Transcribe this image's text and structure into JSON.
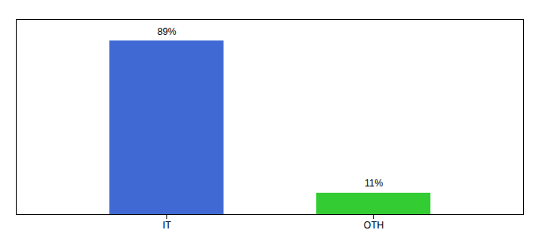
{
  "chart_data": {
    "type": "bar",
    "categories": [
      "IT",
      "OTH"
    ],
    "values": [
      89,
      11
    ],
    "value_labels": [
      "89%",
      "11%"
    ],
    "colors": [
      "#4169d4",
      "#33cc33"
    ],
    "ylim": [
      0,
      100
    ],
    "data_labels": true,
    "tick_labels": "x",
    "grid": false
  }
}
